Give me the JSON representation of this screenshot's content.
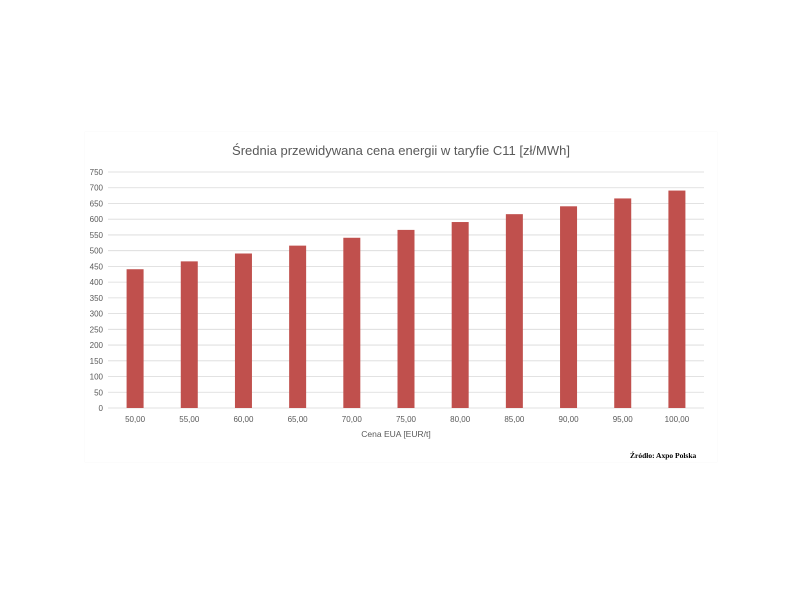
{
  "chart_data": {
    "type": "bar",
    "title": "Średnia przewidywana cena energii w taryfie C11 [zł/MWh]",
    "xlabel": "Cena EUA [EUR/t]",
    "ylabel": "",
    "categories": [
      "50,00",
      "55,00",
      "60,00",
      "65,00",
      "70,00",
      "75,00",
      "80,00",
      "85,00",
      "90,00",
      "95,00",
      "100,00"
    ],
    "values": [
      441,
      466,
      491,
      516,
      541,
      566,
      591,
      616,
      641,
      666,
      691
    ],
    "ylim": [
      0,
      750
    ],
    "yticks": [
      "0",
      "50",
      "100",
      "150",
      "200",
      "250",
      "300",
      "350",
      "400",
      "450",
      "500",
      "550",
      "600",
      "650",
      "700",
      "750"
    ],
    "grid": true,
    "legend": "none",
    "bar_color": "#c0504d",
    "gridline_color": "#d9d9d9"
  },
  "source": {
    "text": "Źródło: Axpo Polska"
  }
}
